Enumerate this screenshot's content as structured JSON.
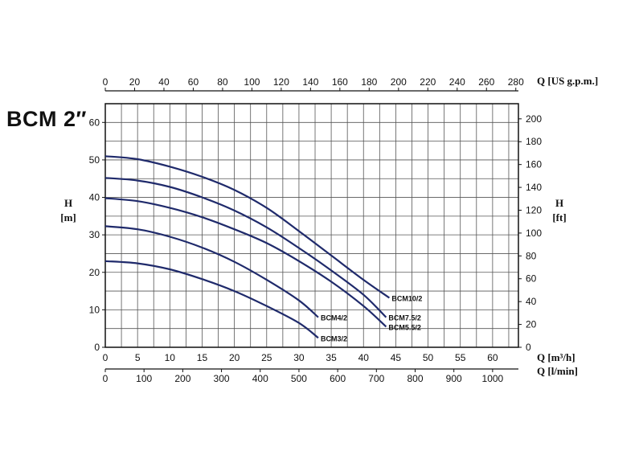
{
  "title": "BCM 2″",
  "chart_data": {
    "type": "line",
    "x_label": "Q [m³/h]",
    "x_ticks": [
      0,
      5,
      10,
      15,
      20,
      25,
      30,
      35,
      40,
      45,
      50,
      55,
      60
    ],
    "x_range": [
      0,
      64
    ],
    "x2_label": "Q [l/min]",
    "x2_ticks": [
      0,
      100,
      200,
      300,
      400,
      500,
      600,
      700,
      800,
      900,
      1000
    ],
    "top_label": "Q [US g.p.m.]",
    "top_ticks": [
      0,
      20,
      40,
      60,
      80,
      100,
      120,
      140,
      160,
      180,
      200,
      220,
      240,
      260,
      280
    ],
    "y_label_line1": "H",
    "y_label_line2": "[m]",
    "y_ticks": [
      0,
      10,
      20,
      30,
      40,
      50,
      60
    ],
    "y_range": [
      0,
      65
    ],
    "y2_label_line1": "H",
    "y2_label_line2": "[ft]",
    "y2_ticks": [
      0,
      20,
      40,
      60,
      80,
      100,
      120,
      140,
      160,
      180,
      200
    ],
    "grid": true,
    "curve_color": "#1f2a6b",
    "series": [
      {
        "name": "BCM10/2",
        "x": [
          0,
          5,
          10,
          15,
          20,
          25,
          30,
          35,
          40,
          44
        ],
        "y": [
          51,
          50.2,
          48.2,
          45.5,
          42,
          37.2,
          31,
          24.5,
          18,
          13.2
        ]
      },
      {
        "name": "BCM7.5/2",
        "x": [
          0,
          5,
          10,
          15,
          20,
          25,
          30,
          35,
          40,
          43.5
        ],
        "y": [
          45.2,
          44.5,
          42.8,
          40,
          36.5,
          32,
          26.5,
          20.5,
          14,
          8
        ]
      },
      {
        "name": "BCM5.5/2",
        "x": [
          0,
          5,
          10,
          15,
          20,
          25,
          30,
          35,
          40,
          43.5
        ],
        "y": [
          39.8,
          39,
          37.2,
          34.7,
          31.5,
          27.8,
          23,
          17.5,
          11,
          5.5
        ]
      },
      {
        "name": "BCM4/2",
        "x": [
          0,
          5,
          10,
          15,
          20,
          25,
          30,
          33
        ],
        "y": [
          32.3,
          31.5,
          29.5,
          26.6,
          22.8,
          18,
          12.5,
          8
        ]
      },
      {
        "name": "BCM3/2",
        "x": [
          0,
          5,
          10,
          15,
          20,
          25,
          30,
          33
        ],
        "y": [
          23,
          22.4,
          20.8,
          18.2,
          15,
          11,
          6.5,
          2.5
        ]
      }
    ]
  }
}
